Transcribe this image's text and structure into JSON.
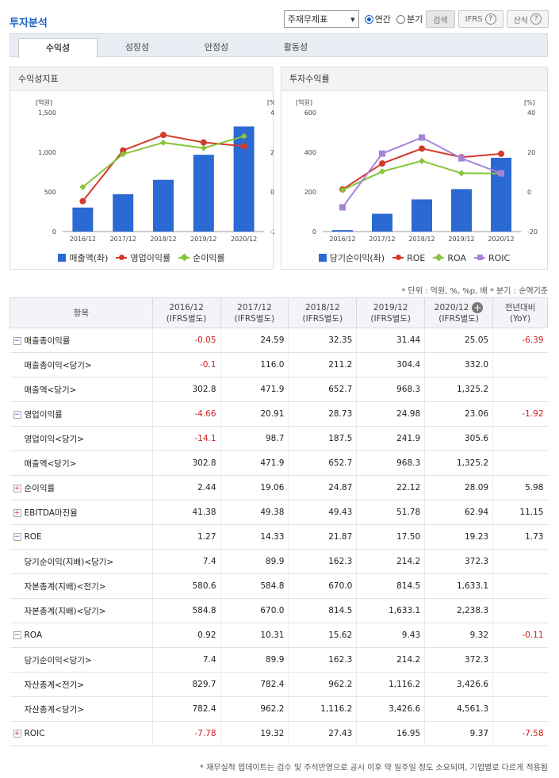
{
  "header": {
    "title": "투자분석",
    "select_value": "주재무제표",
    "radio_annual": "연간",
    "radio_quarter": "분기",
    "search": "검색",
    "ifrs": "IFRS",
    "calc": "산식"
  },
  "tabs": [
    "수익성",
    "성장성",
    "안정성",
    "활동성"
  ],
  "panels": {
    "left_title": "수익성지표",
    "right_title": "투자수익률"
  },
  "chart_data": [
    {
      "type": "bar",
      "title": "수익성지표",
      "categories": [
        "2016/12",
        "2017/12",
        "2018/12",
        "2019/12",
        "2020/12"
      ],
      "left_unit": "[억원]",
      "right_unit": "[%]",
      "left_ticks": [
        "1,500",
        "1,000",
        "500",
        "0"
      ],
      "right_ticks": [
        "40",
        "20",
        "0",
        "-20"
      ],
      "left_range": [
        0,
        1500
      ],
      "right_range": [
        -20,
        40
      ],
      "bars": {
        "name": "매출액(좌)",
        "values": [
          302.8,
          471.9,
          652.7,
          968.3,
          1325.2
        ]
      },
      "series": [
        {
          "name": "영업이익률",
          "values": [
            -4.66,
            20.91,
            28.73,
            24.98,
            23.06
          ],
          "color": "#d43a2a"
        },
        {
          "name": "순이익률",
          "values": [
            2.44,
            19.06,
            24.87,
            22.12,
            28.09
          ],
          "color": "#86c53a"
        }
      ]
    },
    {
      "type": "bar",
      "title": "투자수익률",
      "categories": [
        "2016/12",
        "2017/12",
        "2018/12",
        "2019/12",
        "2020/12"
      ],
      "left_unit": "[억원]",
      "right_unit": "[%]",
      "left_ticks": [
        "600",
        "400",
        "200",
        "0"
      ],
      "right_ticks": [
        "40",
        "20",
        "0",
        "-20"
      ],
      "left_range": [
        0,
        600
      ],
      "right_range": [
        -20,
        40
      ],
      "bars": {
        "name": "당기순이익(좌)",
        "values": [
          7.4,
          89.9,
          162.3,
          214.2,
          372.3
        ]
      },
      "series": [
        {
          "name": "ROE",
          "values": [
            1.27,
            14.33,
            21.87,
            17.5,
            19.23
          ],
          "color": "#d43a2a"
        },
        {
          "name": "ROA",
          "values": [
            0.92,
            10.31,
            15.62,
            9.43,
            9.32
          ],
          "color": "#86c53a"
        },
        {
          "name": "ROIC",
          "values": [
            -7.78,
            19.32,
            27.43,
            16.95,
            9.37
          ],
          "color": "#a683d8"
        }
      ]
    }
  ],
  "unit_note": "* 단위 : 억원, %, %p, 배   * 분기 : 순액기준",
  "table": {
    "head": [
      "항목",
      "2016/12\n(IFRS별도)",
      "2017/12\n(IFRS별도)",
      "2018/12\n(IFRS별도)",
      "2019/12\n(IFRS별도)",
      "2020/12\n(IFRS별도)",
      "전년대비\n(YoY)"
    ],
    "rows": [
      {
        "label": "매출총이익률",
        "t": "minus",
        "v": [
          "-0.05",
          "24.59",
          "32.35",
          "31.44",
          "25.05",
          "-6.39"
        ]
      },
      {
        "label": "매출총이익<당기>",
        "t": "",
        "v": [
          "-0.1",
          "116.0",
          "211.2",
          "304.4",
          "332.0",
          ""
        ]
      },
      {
        "label": "매출액<당기>",
        "t": "",
        "v": [
          "302.8",
          "471.9",
          "652.7",
          "968.3",
          "1,325.2",
          ""
        ]
      },
      {
        "label": "영업이익률",
        "t": "minus",
        "v": [
          "-4.66",
          "20.91",
          "28.73",
          "24.98",
          "23.06",
          "-1.92"
        ]
      },
      {
        "label": "영업이익<당기>",
        "t": "",
        "v": [
          "-14.1",
          "98.7",
          "187.5",
          "241.9",
          "305.6",
          ""
        ]
      },
      {
        "label": "매출액<당기>",
        "t": "",
        "v": [
          "302.8",
          "471.9",
          "652.7",
          "968.3",
          "1,325.2",
          ""
        ]
      },
      {
        "label": "순이익률",
        "t": "plus",
        "v": [
          "2.44",
          "19.06",
          "24.87",
          "22.12",
          "28.09",
          "5.98"
        ]
      },
      {
        "label": "EBITDA마진율",
        "t": "plus",
        "v": [
          "41.38",
          "49.38",
          "49.43",
          "51.78",
          "62.94",
          "11.15"
        ]
      },
      {
        "label": "ROE",
        "t": "minus",
        "v": [
          "1.27",
          "14.33",
          "21.87",
          "17.50",
          "19.23",
          "1.73"
        ]
      },
      {
        "label": "당기순이익(지배)<당기>",
        "t": "",
        "v": [
          "7.4",
          "89.9",
          "162.3",
          "214.2",
          "372.3",
          ""
        ]
      },
      {
        "label": "자본총계(지배)<전기>",
        "t": "",
        "v": [
          "580.6",
          "584.8",
          "670.0",
          "814.5",
          "1,633.1",
          ""
        ]
      },
      {
        "label": "자본총계(지배)<당기>",
        "t": "",
        "v": [
          "584.8",
          "670.0",
          "814.5",
          "1,633.1",
          "2,238.3",
          ""
        ]
      },
      {
        "label": "ROA",
        "t": "minus",
        "v": [
          "0.92",
          "10.31",
          "15.62",
          "9.43",
          "9.32",
          "-0.11"
        ]
      },
      {
        "label": "당기순이익<당기>",
        "t": "",
        "v": [
          "7.4",
          "89.9",
          "162.3",
          "214.2",
          "372.3",
          ""
        ]
      },
      {
        "label": "자산총계<전기>",
        "t": "",
        "v": [
          "829.7",
          "782.4",
          "962.2",
          "1,116.2",
          "3,426.6",
          ""
        ]
      },
      {
        "label": "자산총계<당기>",
        "t": "",
        "v": [
          "782.4",
          "962.2",
          "1,116.2",
          "3,426.6",
          "4,561.3",
          ""
        ]
      },
      {
        "label": "ROIC",
        "t": "plus",
        "v": [
          "-7.78",
          "19.32",
          "27.43",
          "16.95",
          "9.37",
          "-7.58"
        ]
      }
    ]
  },
  "footnote": "* 재무실적 업데이트는 검수 및 주석반영으로 공시 이후 약 일주일 정도 소요되며, 기업별로 다르게 적용됨"
}
